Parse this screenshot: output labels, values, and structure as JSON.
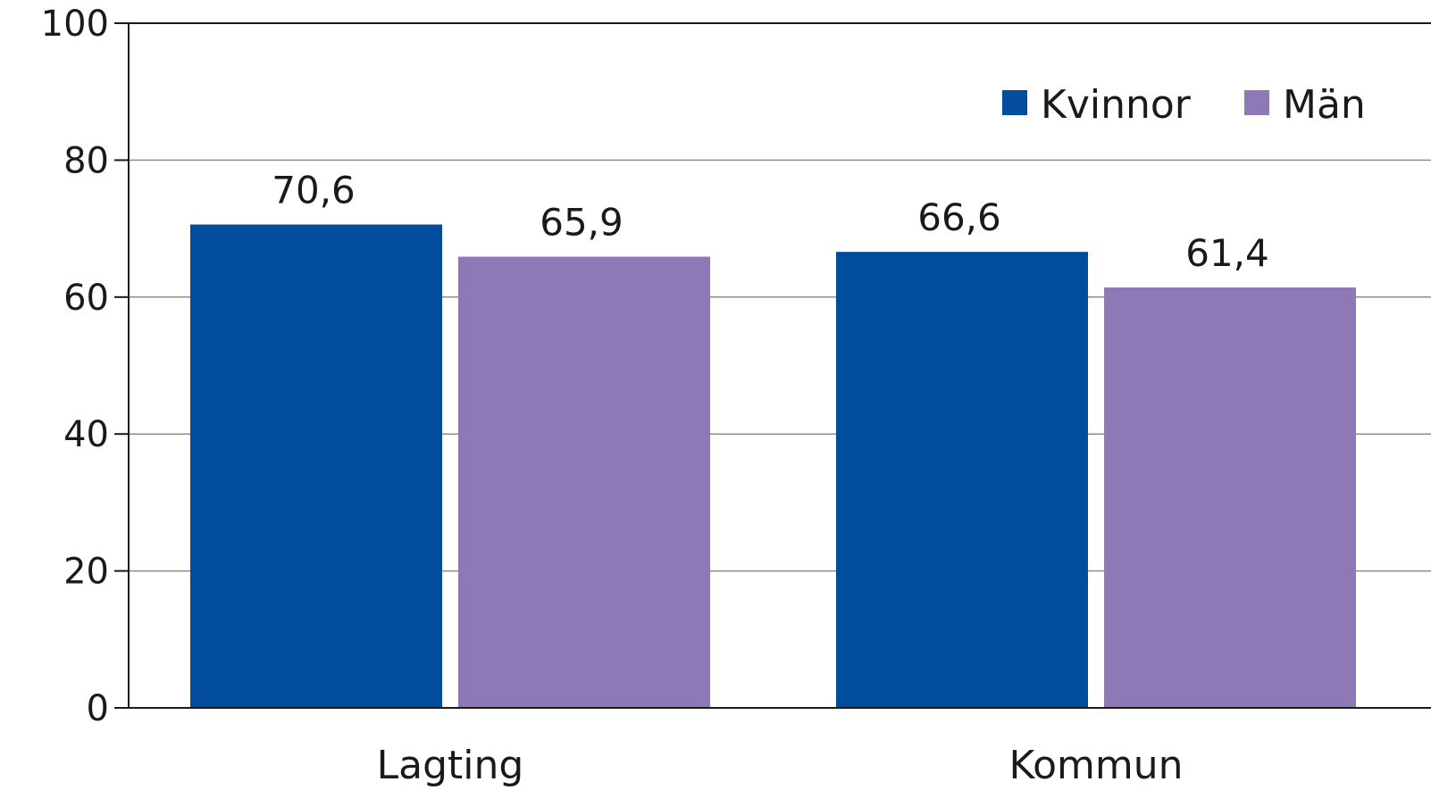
{
  "chart_data": {
    "type": "bar",
    "categories": [
      "Lagting",
      "Kommun"
    ],
    "series": [
      {
        "name": "Kvinnor",
        "values": [
          70.6,
          66.6
        ],
        "color": "#024C9E",
        "labels": [
          "70,6",
          "66,6"
        ]
      },
      {
        "name": "Män",
        "values": [
          65.9,
          61.4
        ],
        "color": "#8E78B6",
        "labels": [
          "65,9",
          "61,4"
        ]
      }
    ],
    "title": "",
    "xlabel": "",
    "ylabel": "",
    "ylim": [
      0,
      100
    ],
    "yticks": [
      0,
      20,
      40,
      60,
      80,
      100
    ],
    "ytick_labels": [
      "0",
      "20",
      "40",
      "60",
      "80",
      "100"
    ],
    "grid": true,
    "legend_position": "top-right"
  }
}
